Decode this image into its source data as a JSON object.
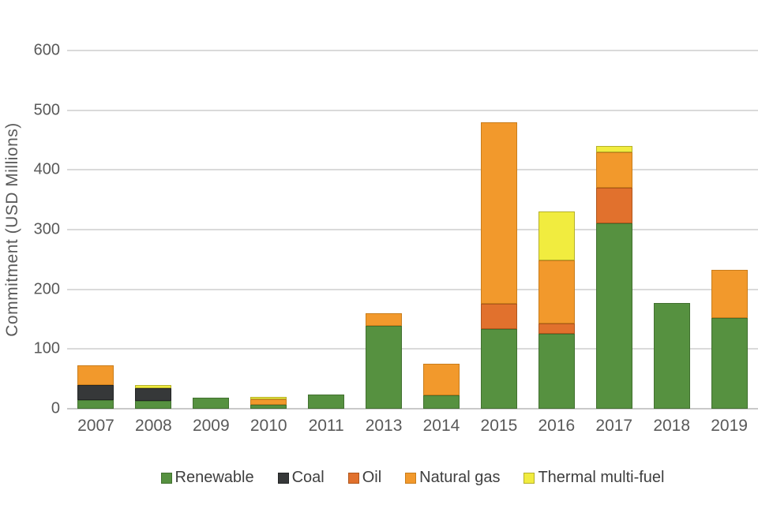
{
  "chart_data": {
    "type": "bar",
    "stacked": true,
    "ylabel": "Commitment (USD Millions)",
    "ylim": [
      0,
      600
    ],
    "yticks": [
      0,
      100,
      200,
      300,
      400,
      500,
      600
    ],
    "grid": "horizontal",
    "legend_position": "bottom",
    "categories": [
      "2007",
      "2008",
      "2009",
      "2010",
      "2011",
      "2013",
      "2014",
      "2015",
      "2016",
      "2017",
      "2018",
      "2019"
    ],
    "series": [
      {
        "name": "Renewable",
        "color": "#569140",
        "border": "#41702f",
        "values": [
          15,
          13,
          18,
          7,
          24,
          139,
          22,
          134,
          126,
          310,
          177,
          152
        ]
      },
      {
        "name": "Coal",
        "color": "#363839",
        "border": "#232526",
        "values": [
          25,
          22,
          0,
          0,
          0,
          0,
          0,
          0,
          0,
          0,
          0,
          0
        ]
      },
      {
        "name": "Oil",
        "color": "#e1712d",
        "border": "#b0561c",
        "values": [
          0,
          0,
          0,
          0,
          0,
          0,
          0,
          42,
          17,
          60,
          0,
          0
        ]
      },
      {
        "name": "Natural gas",
        "color": "#f2992c",
        "border": "#c97d1b",
        "values": [
          33,
          0,
          0,
          9,
          0,
          21,
          53,
          304,
          105,
          60,
          0,
          81
        ]
      },
      {
        "name": "Thermal multi-fuel",
        "color": "#f1ec3f",
        "border": "#b5b02a",
        "values": [
          0,
          5,
          0,
          4,
          0,
          0,
          0,
          0,
          83,
          10,
          0,
          0
        ]
      }
    ],
    "totals": {
      "2007": 73,
      "2008": 40,
      "2009": 18,
      "2010": 20,
      "2011": 24,
      "2013": 160,
      "2014": 75,
      "2015": 480,
      "2016": 331,
      "2017": 440,
      "2018": 177,
      "2019": 233
    }
  },
  "colors": {
    "gridline": "#dadada",
    "axis_line": "#c9c9c9",
    "tick_text": "#595959",
    "legend_text": "#3f3f3f",
    "background": "#ffffff"
  }
}
